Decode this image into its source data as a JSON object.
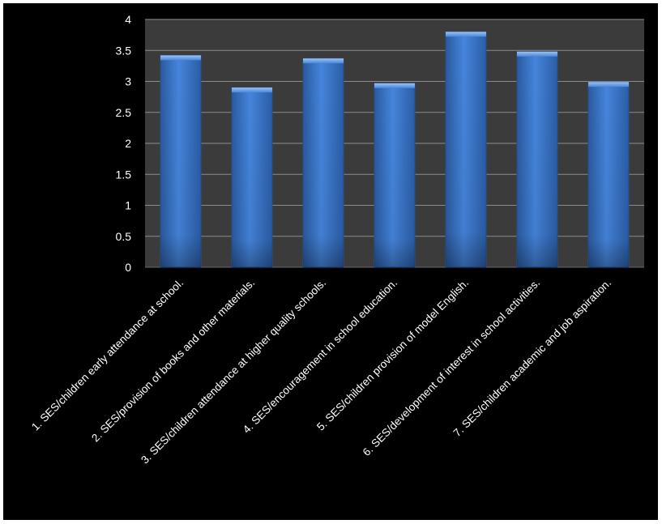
{
  "chart_data": {
    "type": "bar",
    "title": "",
    "xlabel": "",
    "ylabel": "",
    "ylim": [
      0,
      4
    ],
    "yticks": [
      0,
      0.5,
      1,
      1.5,
      2,
      2.5,
      3,
      3.5,
      4
    ],
    "ytick_labels": [
      "0",
      "0.5",
      "1",
      "1.5",
      "2",
      "2.5",
      "3",
      "3.5",
      "4"
    ],
    "grid": true,
    "legend": "none",
    "categories": [
      "1. SES/children early attendance at school.",
      "2. SES/provision of books and other materials.",
      "3. SES/children attendance at higher quality schools.",
      "4. SES/encouragement  in school education.",
      "5. SES/children  provision of model English.",
      "6. SES/development of interest in school activities.",
      "7. SES/children academic and job aspiration."
    ],
    "values": [
      3.42,
      2.9,
      3.37,
      2.97,
      3.8,
      3.48,
      2.99
    ],
    "colors": {
      "background": "#000000",
      "plot_area": "#3b3b3b",
      "grid": "#8c8c8c",
      "bar_top": "#3f7fd6",
      "bar_bottom": "#2c5fa8",
      "text": "#ffffff"
    }
  }
}
